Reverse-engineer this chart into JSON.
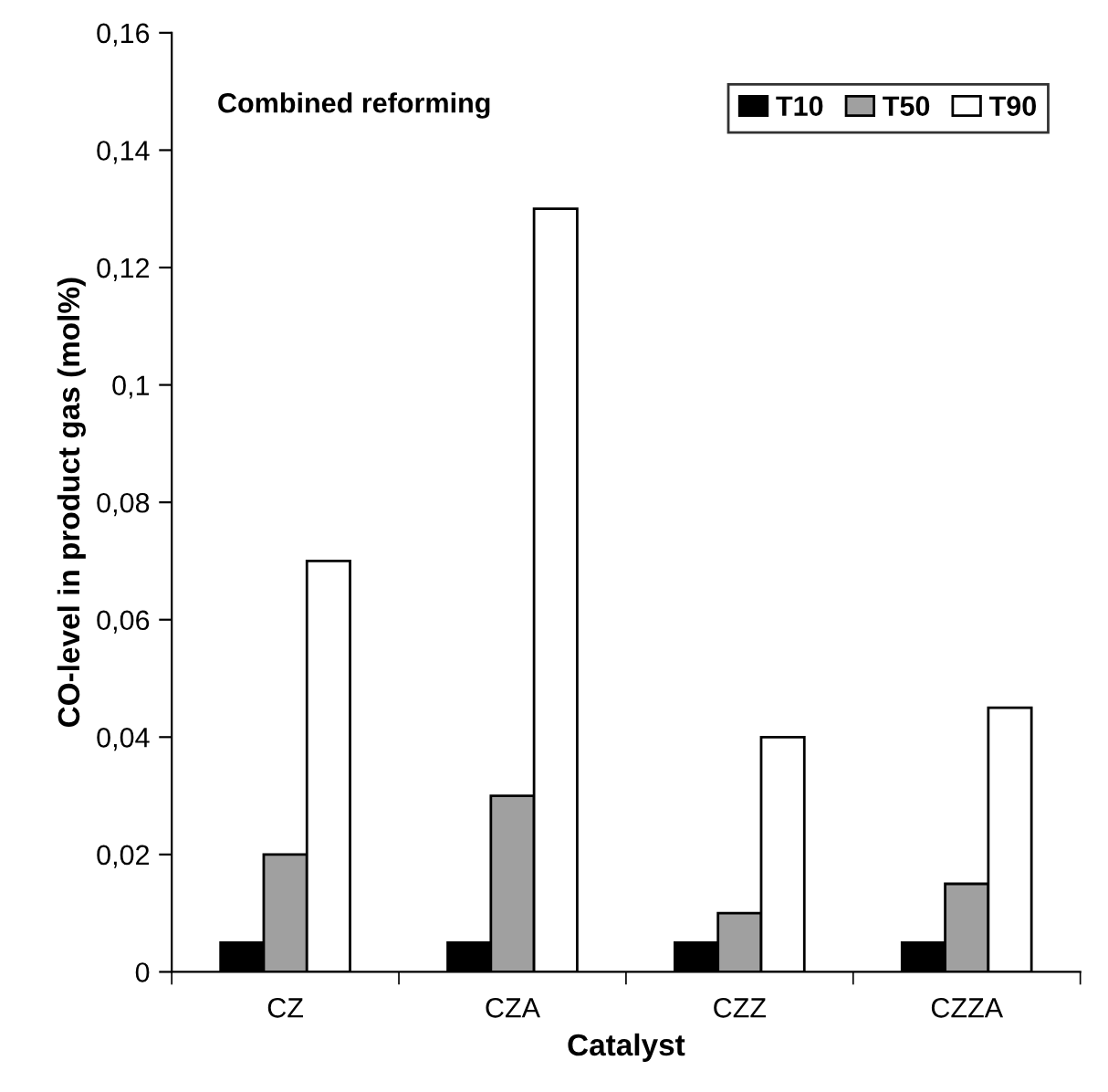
{
  "chart_data": {
    "type": "bar",
    "xlabel": "Catalyst",
    "ylabel": "CO-level in product gas (mol%)",
    "annotations": [
      "Combined reforming"
    ],
    "categories": [
      "CZ",
      "CZA",
      "CZZ",
      "CZZA"
    ],
    "series": [
      {
        "name": "T10",
        "color": "#000000",
        "values": [
          0.005,
          0.005,
          0.005,
          0.005
        ]
      },
      {
        "name": "T50",
        "color": "#a0a0a0",
        "values": [
          0.02,
          0.03,
          0.01,
          0.015
        ]
      },
      {
        "name": "T90",
        "color": "#ffffff",
        "values": [
          0.07,
          0.13,
          0.04,
          0.045
        ]
      }
    ],
    "ylim": [
      0,
      0.16
    ],
    "yticks": [
      0,
      {
        "value": 0.02,
        "label": "0,02"
      },
      {
        "value": 0.04,
        "label": "0,04"
      },
      {
        "value": 0.06,
        "label": "0,06"
      },
      {
        "value": 0.08,
        "label": "0,08"
      },
      {
        "value": 0.1,
        "label": "0,1"
      },
      {
        "value": 0.12,
        "label": "0,12"
      },
      {
        "value": 0.14,
        "label": "0,14"
      },
      {
        "value": 0.16,
        "label": "0,16"
      }
    ],
    "grid": false,
    "legend": "top right"
  }
}
